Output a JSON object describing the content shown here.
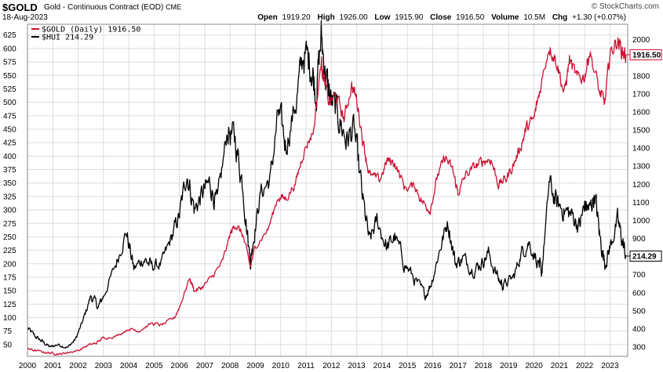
{
  "header": {
    "symbol": "$GOLD",
    "description": "Gold - Continuous Contract (EOD)",
    "exchange": "CME",
    "date": "18-Aug-2023",
    "brand": "© StockCharts.com",
    "open_label": "Open",
    "open": "1919.20",
    "high_label": "High",
    "high": "1926.00",
    "low_label": "Low",
    "low": "1915.90",
    "close_label": "Close",
    "close": "1916.50",
    "volume_label": "Volume",
    "volume": "10.5M",
    "chg_label": "Chg",
    "chg": "+1.30 (+0.07%)"
  },
  "chart_data": {
    "type": "line",
    "x_ticks": [
      "2000",
      "2001",
      "2002",
      "2003",
      "2004",
      "2005",
      "2006",
      "2007",
      "2008",
      "2009",
      "2010",
      "2011",
      "2012",
      "2013",
      "2014",
      "2015",
      "2016",
      "2017",
      "2018",
      "2019",
      "2020",
      "2021",
      "2022",
      "2023"
    ],
    "left_axis": {
      "series": "$HUI",
      "ylim": [
        28,
        645
      ],
      "ticks": [
        50,
        75,
        100,
        125,
        150,
        175,
        200,
        225,
        250,
        275,
        300,
        325,
        350,
        375,
        400,
        425,
        450,
        475,
        500,
        525,
        550,
        575,
        600,
        625
      ]
    },
    "right_axis": {
      "series": "$GOLD",
      "ylim": [
        248,
        2085
      ],
      "ticks": [
        300,
        400,
        500,
        600,
        700,
        800,
        900,
        1000,
        1100,
        1200,
        1300,
        1400,
        1500,
        1600,
        1700,
        1800,
        1900,
        2000
      ]
    },
    "grid": true,
    "legend_position": "top-left",
    "series": [
      {
        "name": "$GOLD (Daily) 1916.50",
        "axis": "right",
        "color": "#cc1133",
        "last_label": "1916.50",
        "x": [
          2000.0,
          2000.3,
          2000.7,
          2001.0,
          2001.3,
          2001.6,
          2002.0,
          2002.4,
          2002.7,
          2003.0,
          2003.5,
          2004.0,
          2004.4,
          2004.9,
          2005.3,
          2005.8,
          2006.0,
          2006.4,
          2006.6,
          2006.9,
          2007.3,
          2007.7,
          2008.0,
          2008.2,
          2008.5,
          2008.8,
          2009.0,
          2009.5,
          2009.9,
          2010.2,
          2010.6,
          2010.9,
          2011.3,
          2011.6,
          2011.7,
          2011.9,
          2012.2,
          2012.5,
          2012.8,
          2013.0,
          2013.3,
          2013.5,
          2013.9,
          2014.2,
          2014.5,
          2014.9,
          2015.3,
          2015.6,
          2015.9,
          2016.2,
          2016.5,
          2016.8,
          2017.0,
          2017.3,
          2017.7,
          2018.0,
          2018.3,
          2018.6,
          2018.9,
          2019.2,
          2019.5,
          2019.7,
          2020.0,
          2020.2,
          2020.6,
          2020.9,
          2021.2,
          2021.4,
          2021.7,
          2022.0,
          2022.2,
          2022.6,
          2022.8,
          2023.0,
          2023.3,
          2023.5,
          2023.63
        ],
        "values": [
          290,
          280,
          270,
          265,
          260,
          270,
          280,
          310,
          320,
          350,
          360,
          400,
          390,
          430,
          420,
          460,
          520,
          680,
          610,
          630,
          690,
          770,
          920,
          980,
          920,
          740,
          860,
          950,
          1130,
          1120,
          1210,
          1380,
          1500,
          1880,
          1790,
          1650,
          1690,
          1560,
          1750,
          1670,
          1400,
          1250,
          1220,
          1330,
          1320,
          1180,
          1190,
          1100,
          1060,
          1250,
          1350,
          1270,
          1150,
          1250,
          1300,
          1330,
          1340,
          1200,
          1230,
          1310,
          1420,
          1510,
          1560,
          1700,
          1970,
          1880,
          1700,
          1890,
          1780,
          1800,
          1940,
          1700,
          1650,
          1920,
          2000,
          1930,
          1916.5
        ]
      },
      {
        "name": "$HUI 214.29",
        "axis": "left",
        "color": "#000000",
        "last_label": "214.29",
        "x": [
          2000.0,
          2000.3,
          2000.6,
          2000.9,
          2001.2,
          2001.6,
          2001.9,
          2002.2,
          2002.5,
          2002.8,
          2003.0,
          2003.5,
          2003.9,
          2004.2,
          2004.6,
          2004.9,
          2005.3,
          2005.7,
          2006.0,
          2006.3,
          2006.6,
          2006.9,
          2007.2,
          2007.5,
          2007.9,
          2008.2,
          2008.5,
          2008.8,
          2008.9,
          2009.2,
          2009.6,
          2009.9,
          2010.2,
          2010.6,
          2010.9,
          2011.2,
          2011.4,
          2011.6,
          2011.8,
          2012.0,
          2012.3,
          2012.6,
          2012.9,
          2013.2,
          2013.5,
          2013.8,
          2014.2,
          2014.5,
          2014.9,
          2015.3,
          2015.7,
          2015.95,
          2016.3,
          2016.6,
          2016.9,
          2017.2,
          2017.6,
          2017.9,
          2018.2,
          2018.6,
          2018.8,
          2019.2,
          2019.5,
          2019.8,
          2020.2,
          2020.3,
          2020.6,
          2020.9,
          2021.2,
          2021.5,
          2021.8,
          2022.0,
          2022.2,
          2022.4,
          2022.6,
          2022.8,
          2023.0,
          2023.3,
          2023.5,
          2023.63
        ],
        "values": [
          80,
          65,
          55,
          45,
          50,
          45,
          60,
          95,
          140,
          120,
          140,
          200,
          260,
          190,
          210,
          195,
          200,
          250,
          290,
          370,
          300,
          330,
          350,
          310,
          450,
          430,
          350,
          200,
          240,
          330,
          360,
          480,
          420,
          500,
          590,
          570,
          520,
          620,
          540,
          500,
          470,
          430,
          450,
          330,
          240,
          280,
          230,
          250,
          200,
          170,
          140,
          165,
          230,
          280,
          200,
          210,
          190,
          200,
          220,
          170,
          160,
          175,
          220,
          240,
          200,
          180,
          350,
          310,
          300,
          290,
          270,
          310,
          300,
          330,
          250,
          200,
          230,
          280,
          240,
          214.29
        ]
      }
    ]
  }
}
